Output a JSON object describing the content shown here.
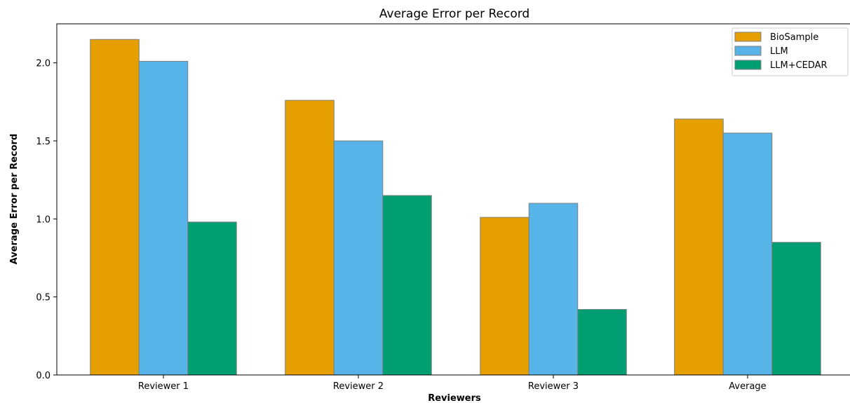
{
  "chart_data": {
    "type": "bar",
    "title": "Average Error per Record",
    "xlabel": "Reviewers",
    "ylabel": "Average Error per Record",
    "categories": [
      "Reviewer 1",
      "Reviewer 2",
      "Reviewer 3",
      "Average"
    ],
    "series": [
      {
        "name": "BioSample",
        "color": "#E69F00",
        "values": [
          2.15,
          1.76,
          1.01,
          1.64
        ]
      },
      {
        "name": "LLM",
        "color": "#56B4E9",
        "values": [
          2.01,
          1.5,
          1.1,
          1.55
        ]
      },
      {
        "name": "LLM+CEDAR",
        "color": "#009E73",
        "values": [
          0.98,
          1.15,
          0.42,
          0.85
        ]
      }
    ],
    "ylim": [
      0,
      2.25
    ],
    "yticks": [
      "0.0",
      "0.5",
      "1.0",
      "1.5",
      "2.0"
    ],
    "grid": false,
    "legend_position": "top-right"
  }
}
